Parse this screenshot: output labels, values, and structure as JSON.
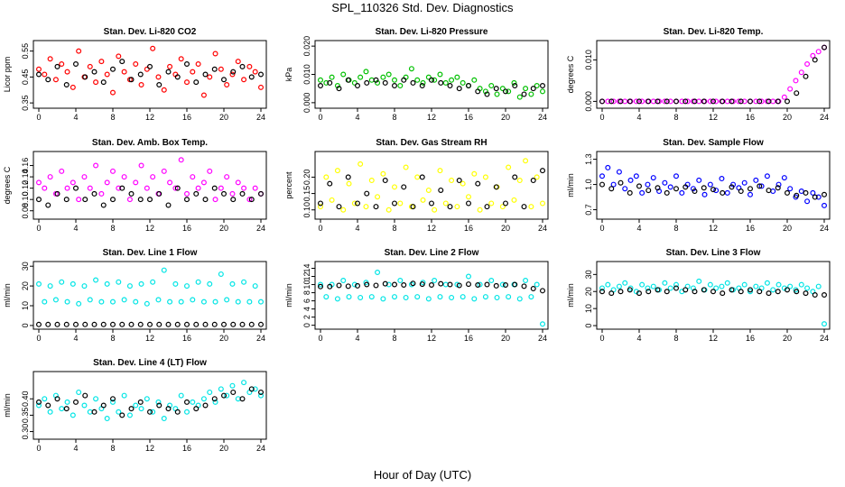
{
  "figure": {
    "title": "SPL_110326  Std. Dev. Diagnostics",
    "xlabel": "Hour of Day (UTC)"
  },
  "chart_data": [
    {
      "type": "scatter",
      "title": "Stan. Dev. Li-820 CO2",
      "ylabel": "Licor ppm",
      "xlim": [
        0,
        24
      ],
      "ylim": [
        0.34,
        0.58
      ],
      "xticks": [
        0,
        4,
        8,
        12,
        16,
        20,
        24
      ],
      "yticks": [
        {
          "v": 0.35,
          "label": "0.35"
        },
        {
          "v": 0.45,
          "label": "0.45"
        },
        {
          "v": 0.55,
          "label": "0.55"
        }
      ],
      "series": [
        {
          "color": "#ff0000",
          "values": [
            0.48,
            0.46,
            0.52,
            0.44,
            0.5,
            0.47,
            0.41,
            0.55,
            0.45,
            0.49,
            0.43,
            0.51,
            0.46,
            0.39,
            0.53,
            0.47,
            0.44,
            0.5,
            0.42,
            0.48,
            0.56,
            0.45,
            0.4,
            0.49,
            0.46,
            0.52,
            0.43,
            0.47,
            0.5,
            0.38,
            0.45,
            0.54,
            0.48,
            0.42,
            0.46,
            0.51,
            0.44,
            0.49,
            0.47,
            0.41
          ]
        },
        {
          "color": "#000000",
          "values": [
            0.46,
            0.44,
            0.49,
            0.42,
            0.5,
            0.45,
            0.47,
            0.43,
            0.48,
            0.51,
            0.44,
            0.46,
            0.49,
            0.42,
            0.47,
            0.45,
            0.5,
            0.43,
            0.46,
            0.48,
            0.44,
            0.47,
            0.49,
            0.45,
            0.46
          ]
        }
      ]
    },
    {
      "type": "scatter",
      "title": "Stan. Dev. Li-820 Pressure",
      "ylabel": "kPa",
      "xlim": [
        0,
        24
      ],
      "ylim": [
        -0.001,
        0.021
      ],
      "xticks": [
        0,
        4,
        8,
        12,
        16,
        20,
        24
      ],
      "yticks": [
        {
          "v": 0,
          "label": "0.000"
        },
        {
          "v": 0.01,
          "label": "0.010"
        },
        {
          "v": 0.02,
          "label": "0.020"
        }
      ],
      "series": [
        {
          "color": "#00c000",
          "values": [
            0.008,
            0.007,
            0.009,
            0.006,
            0.01,
            0.008,
            0.007,
            0.009,
            0.011,
            0.008,
            0.007,
            0.009,
            0.01,
            0.008,
            0.006,
            0.009,
            0.012,
            0.008,
            0.007,
            0.009,
            0.008,
            0.01,
            0.007,
            0.008,
            0.009,
            0.007,
            0.006,
            0.008,
            0.005,
            0.004,
            0.006,
            0.003,
            0.005,
            0.004,
            0.007,
            0.002,
            0.005,
            0.003,
            0.006,
            0.004
          ]
        },
        {
          "color": "#000000",
          "values": [
            0.006,
            0.007,
            0.005,
            0.008,
            0.006,
            0.007,
            0.008,
            0.007,
            0.006,
            0.008,
            0.007,
            0.006,
            0.008,
            0.007,
            0.006,
            0.005,
            0.006,
            0.004,
            0.003,
            0.005,
            0.004,
            0.006,
            0.003,
            0.005,
            0.006
          ]
        }
      ]
    },
    {
      "type": "scatter",
      "title": "Stan. Dev. Li-820 Temp.",
      "ylabel": "degrees C",
      "xlim": [
        0,
        24
      ],
      "ylim": [
        -0.001,
        0.014
      ],
      "xticks": [
        0,
        4,
        8,
        12,
        16,
        20,
        24
      ],
      "yticks": [
        {
          "v": 0,
          "label": "0.000"
        },
        {
          "v": 0.01,
          "label": "0.010"
        }
      ],
      "series": [
        {
          "color": "#ff00ff",
          "values": [
            0,
            0,
            0,
            0,
            0,
            0,
            0,
            0,
            0,
            0,
            0,
            0,
            0,
            0,
            0,
            0,
            0,
            0,
            0,
            0,
            0,
            0,
            0,
            0,
            0,
            0,
            0,
            0,
            0,
            0,
            0,
            0,
            0.001,
            0.003,
            0.005,
            0.007,
            0.009,
            0.011,
            0.012,
            0.013
          ]
        },
        {
          "color": "#000000",
          "values": [
            0,
            0,
            0,
            0,
            0,
            0,
            0,
            0,
            0,
            0,
            0,
            0,
            0,
            0,
            0,
            0,
            0,
            0,
            0,
            0,
            0,
            0.002,
            0.006,
            0.01,
            0.013
          ]
        }
      ]
    },
    {
      "type": "scatter",
      "title": "Stan. Dev. Amb. Box Temp.",
      "ylabel": "degrees C",
      "xlim": [
        0,
        24
      ],
      "ylim": [
        0.07,
        0.18
      ],
      "xticks": [
        0,
        4,
        8,
        12,
        16,
        20,
        24
      ],
      "yticks": [
        {
          "v": 0.08,
          "label": "0.08"
        },
        {
          "v": 0.1,
          "label": "0.10"
        },
        {
          "v": 0.12,
          "label": "0.12"
        },
        {
          "v": 0.14,
          "label": "0.14"
        },
        {
          "v": 0.16,
          "label": "0.16"
        }
      ],
      "series": [
        {
          "color": "#ff00ff",
          "values": [
            0.13,
            0.12,
            0.14,
            0.11,
            0.15,
            0.12,
            0.13,
            0.1,
            0.14,
            0.12,
            0.16,
            0.11,
            0.13,
            0.15,
            0.12,
            0.14,
            0.1,
            0.13,
            0.16,
            0.12,
            0.14,
            0.11,
            0.15,
            0.13,
            0.12,
            0.17,
            0.11,
            0.14,
            0.12,
            0.13,
            0.15,
            0.1,
            0.12,
            0.14,
            0.11,
            0.13,
            0.12,
            0.1,
            0.12,
            0.11
          ]
        },
        {
          "color": "#000000",
          "values": [
            0.1,
            0.09,
            0.11,
            0.1,
            0.12,
            0.1,
            0.11,
            0.09,
            0.1,
            0.12,
            0.11,
            0.1,
            0.1,
            0.11,
            0.09,
            0.12,
            0.1,
            0.11,
            0.1,
            0.12,
            0.11,
            0.1,
            0.11,
            0.1,
            0.11
          ]
        }
      ]
    },
    {
      "type": "scatter",
      "title": "Stan. Dev. Gas Stream RH",
      "ylabel": "percent",
      "xlim": [
        0,
        24
      ],
      "ylim": [
        0.08,
        0.27
      ],
      "xticks": [
        0,
        4,
        8,
        12,
        16,
        20,
        24
      ],
      "yticks": [
        {
          "v": 0.1,
          "label": "0.10"
        },
        {
          "v": 0.15,
          "label": "0.15"
        },
        {
          "v": 0.2,
          "label": "0.20"
        }
      ],
      "series": [
        {
          "color": "#ffff00",
          "values": [
            0.11,
            0.2,
            0.13,
            0.22,
            0.1,
            0.18,
            0.12,
            0.24,
            0.11,
            0.19,
            0.14,
            0.21,
            0.1,
            0.17,
            0.12,
            0.23,
            0.11,
            0.2,
            0.13,
            0.16,
            0.1,
            0.22,
            0.12,
            0.19,
            0.11,
            0.18,
            0.14,
            0.21,
            0.1,
            0.2,
            0.12,
            0.17,
            0.11,
            0.23,
            0.13,
            0.19,
            0.25,
            0.11,
            0.2,
            0.12
          ]
        },
        {
          "color": "#000000",
          "values": [
            0.12,
            0.18,
            0.11,
            0.2,
            0.12,
            0.15,
            0.11,
            0.19,
            0.12,
            0.17,
            0.11,
            0.2,
            0.12,
            0.16,
            0.11,
            0.19,
            0.12,
            0.18,
            0.11,
            0.17,
            0.12,
            0.2,
            0.11,
            0.19,
            0.22
          ]
        }
      ]
    },
    {
      "type": "scatter",
      "title": "Stan. Dev. Sample Flow",
      "ylabel": "ml/min",
      "xlim": [
        0,
        24
      ],
      "ylim": [
        0.62,
        1.36
      ],
      "xticks": [
        0,
        4,
        8,
        12,
        16,
        20,
        24
      ],
      "yticks": [
        {
          "v": 0.7,
          "label": "0.7"
        },
        {
          "v": 1.0,
          "label": "1.0"
        },
        {
          "v": 1.3,
          "label": "1.3"
        }
      ],
      "series": [
        {
          "color": "#0000ff",
          "values": [
            1.1,
            1.2,
            1.0,
            1.15,
            0.95,
            1.05,
            1.1,
            0.9,
            1.0,
            1.08,
            0.92,
            1.02,
            0.97,
            1.1,
            0.9,
            1.0,
            0.95,
            1.05,
            0.88,
            1.0,
            0.93,
            1.07,
            0.9,
            1.0,
            0.96,
            1.02,
            0.88,
            1.05,
            0.98,
            1.1,
            0.92,
            1.0,
            1.08,
            0.95,
            0.85,
            0.92,
            0.8,
            0.9,
            0.85,
            0.75
          ]
        },
        {
          "color": "#000000",
          "values": [
            1.0,
            0.95,
            1.02,
            0.9,
            0.98,
            0.93,
            0.96,
            0.9,
            0.95,
            0.97,
            0.92,
            0.96,
            0.94,
            0.9,
            0.97,
            0.92,
            0.95,
            0.98,
            0.93,
            0.96,
            0.9,
            0.87,
            0.9,
            0.85,
            0.88
          ]
        }
      ]
    },
    {
      "type": "scatter",
      "title": "Stan. Dev. Line 1 Flow",
      "ylabel": "ml/min",
      "xlim": [
        0,
        24
      ],
      "ylim": [
        -0.5,
        31
      ],
      "xticks": [
        0,
        4,
        8,
        12,
        16,
        20,
        24
      ],
      "yticks": [
        {
          "v": 0,
          "label": "0"
        },
        {
          "v": 10,
          "label": "10"
        },
        {
          "v": 20,
          "label": "20"
        },
        {
          "v": 30,
          "label": "30"
        }
      ],
      "series": [
        {
          "color": "#00e5e5",
          "values": [
            21,
            12,
            20,
            13,
            22,
            12,
            21,
            11,
            20,
            13,
            23,
            12,
            21,
            12,
            22,
            13,
            20,
            12,
            21,
            11,
            22,
            13,
            28,
            12,
            21,
            12,
            20,
            13,
            22,
            12,
            21,
            12,
            26,
            13,
            21,
            12,
            22,
            12,
            20,
            12
          ]
        },
        {
          "color": "#000000",
          "values": [
            0.5,
            0.5,
            0.5,
            0.5,
            0.5,
            0.5,
            0.5,
            0.5,
            0.5,
            0.5,
            0.5,
            0.5,
            0.5,
            0.5,
            0.5,
            0.5,
            0.5,
            0.5,
            0.5,
            0.5,
            0.5,
            0.5,
            0.5,
            0.5,
            0.5
          ]
        }
      ]
    },
    {
      "type": "scatter",
      "title": "Stan. Dev. Line 2 Flow",
      "ylabel": "ml/min",
      "xlim": [
        0,
        24
      ],
      "ylim": [
        -0.3,
        15
      ],
      "xticks": [
        0,
        4,
        8,
        12,
        16,
        20,
        24
      ],
      "yticks": [
        {
          "v": 0,
          "label": "0"
        },
        {
          "v": 2,
          "label": "2"
        },
        {
          "v": 4,
          "label": "4"
        },
        {
          "v": 6,
          "label": "6"
        },
        {
          "v": 8,
          "label": "8"
        },
        {
          "v": 10,
          "label": "10"
        },
        {
          "v": 12,
          "label": "12"
        },
        {
          "v": 14,
          "label": "14"
        }
      ],
      "series": [
        {
          "color": "#00e5e5",
          "values": [
            10,
            7,
            10,
            6.5,
            11,
            7,
            10,
            6.8,
            10.5,
            7,
            13,
            6.5,
            10,
            7,
            11,
            6.8,
            10,
            7,
            10.5,
            6.5,
            11,
            7,
            10,
            6.8,
            10,
            7,
            12,
            6.5,
            10,
            7,
            11,
            6.8,
            10,
            7,
            10,
            6.5,
            11,
            7,
            10,
            0.3
          ]
        },
        {
          "color": "#000000",
          "values": [
            9.5,
            9.5,
            9.8,
            9.6,
            9.7,
            10,
            9.8,
            10.2,
            10,
            9.9,
            10.3,
            10.1,
            9.9,
            10.2,
            10,
            9.8,
            10.1,
            9.9,
            10,
            9.7,
            9.9,
            10,
            9.6,
            9,
            8.5
          ]
        }
      ]
    },
    {
      "type": "scatter",
      "title": "Stan. Dev. Line 3 Flow",
      "ylabel": "ml/min",
      "xlim": [
        0,
        24
      ],
      "ylim": [
        -0.5,
        36
      ],
      "xticks": [
        0,
        4,
        8,
        12,
        16,
        20,
        24
      ],
      "yticks": [
        {
          "v": 0,
          "label": "0"
        },
        {
          "v": 10,
          "label": "10"
        },
        {
          "v": 20,
          "label": "20"
        },
        {
          "v": 30,
          "label": "30"
        }
      ],
      "series": [
        {
          "color": "#00e5e5",
          "values": [
            22,
            24,
            21,
            23,
            25,
            22,
            20,
            24,
            22,
            23,
            21,
            25,
            22,
            24,
            20,
            23,
            22,
            26,
            21,
            24,
            22,
            23,
            25,
            21,
            22,
            24,
            20,
            23,
            22,
            25,
            21,
            24,
            22,
            23,
            21,
            24,
            22,
            20,
            23,
            1
          ]
        },
        {
          "color": "#000000",
          "values": [
            20,
            19,
            20,
            21,
            19,
            20,
            21,
            20,
            22,
            21,
            20,
            21,
            20,
            19,
            21,
            20,
            21,
            20,
            19,
            20,
            21,
            20,
            19,
            18,
            18
          ]
        }
      ]
    },
    {
      "type": "scatter",
      "title": "Stan. Dev. Line 4 (LT) Flow",
      "ylabel": "ml/min",
      "xlim": [
        0,
        24
      ],
      "ylim": [
        0.285,
        0.475
      ],
      "xticks": [
        0,
        4,
        8,
        12,
        16,
        20,
        24
      ],
      "yticks": [
        {
          "v": 0.3,
          "label": "0.30"
        },
        {
          "v": 0.35,
          "label": "0.35"
        },
        {
          "v": 0.4,
          "label": "0.40"
        }
      ],
      "series": [
        {
          "color": "#00e5e5",
          "values": [
            0.38,
            0.4,
            0.36,
            0.41,
            0.37,
            0.39,
            0.35,
            0.42,
            0.38,
            0.36,
            0.4,
            0.37,
            0.34,
            0.39,
            0.36,
            0.41,
            0.35,
            0.38,
            0.37,
            0.4,
            0.36,
            0.39,
            0.34,
            0.38,
            0.37,
            0.41,
            0.36,
            0.39,
            0.38,
            0.4,
            0.42,
            0.39,
            0.43,
            0.41,
            0.44,
            0.4,
            0.45,
            0.42,
            0.43,
            0.41
          ]
        },
        {
          "color": "#000000",
          "values": [
            0.39,
            0.38,
            0.4,
            0.37,
            0.39,
            0.41,
            0.36,
            0.38,
            0.4,
            0.35,
            0.37,
            0.39,
            0.36,
            0.38,
            0.37,
            0.36,
            0.39,
            0.37,
            0.38,
            0.4,
            0.41,
            0.42,
            0.4,
            0.43,
            0.42
          ]
        }
      ]
    }
  ]
}
